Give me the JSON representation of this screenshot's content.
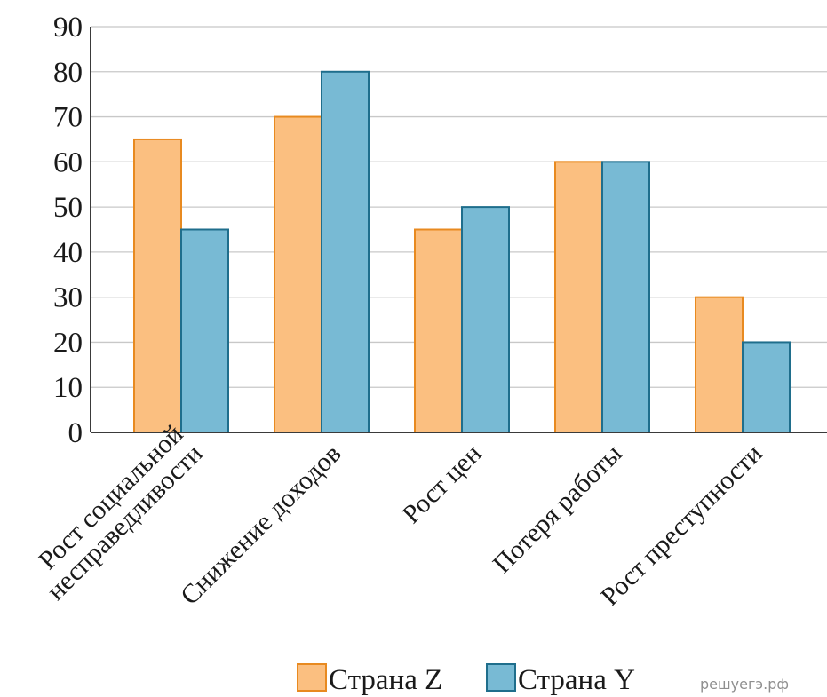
{
  "chart_data": {
    "type": "bar",
    "categories": [
      [
        "Рост социальной",
        "несправедливости"
      ],
      [
        "Снижение доходов"
      ],
      [
        "Рост цен"
      ],
      [
        "Потеря работы"
      ],
      [
        "Рост преступности"
      ]
    ],
    "series": [
      {
        "name": "Страна Z",
        "values": [
          65,
          70,
          45,
          60,
          30
        ],
        "fill": "#fbbf80",
        "stroke": "#e88a20"
      },
      {
        "name": "Страна Y",
        "values": [
          45,
          80,
          50,
          60,
          20
        ],
        "fill": "#78bad4",
        "stroke": "#1f6e8c"
      }
    ],
    "ylim": [
      0,
      90
    ],
    "yticks": [
      "0",
      "10",
      "20",
      "30",
      "40",
      "50",
      "60",
      "70",
      "80",
      "90"
    ],
    "grid": true,
    "legend_position": "bottom"
  },
  "watermark": "решуегэ.рф"
}
